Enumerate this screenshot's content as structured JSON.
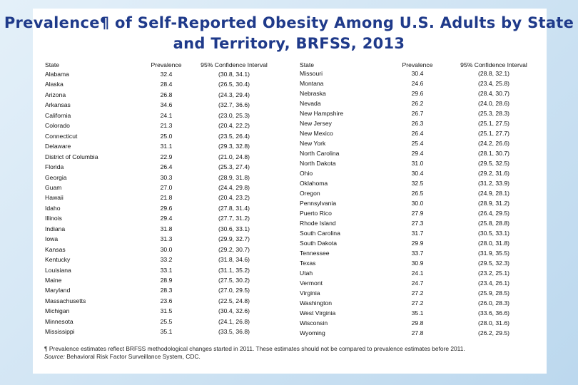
{
  "title": "Prevalence¶ of Self-Reported Obesity Among U.S. Adults by State and Territory, BRFSS, 2013",
  "tables": [
    {
      "header": [
        "State",
        "Prevalence",
        "95% Confidence Interval"
      ],
      "rows": [
        [
          "Alabama",
          "32.4",
          "(30.8, 34.1)"
        ],
        [
          "Alaska",
          "28.4",
          "(26.5, 30.4)"
        ],
        [
          "Arizona",
          "26.8",
          "(24.3, 29.4)"
        ],
        [
          "Arkansas",
          "34.6",
          "(32.7, 36.6)"
        ],
        [
          "California",
          "24.1",
          "(23.0, 25.3)"
        ],
        [
          "Colorado",
          "21.3",
          "(20.4, 22.2)"
        ],
        [
          "Connecticut",
          "25.0",
          "(23.5, 26.4)"
        ],
        [
          "Delaware",
          "31.1",
          "(29.3, 32.8)"
        ],
        [
          "District of Columbia",
          "22.9",
          "(21.0, 24.8)"
        ],
        [
          "Florida",
          "26.4",
          "(25.3, 27.4)"
        ],
        [
          "Georgia",
          "30.3",
          "(28.9, 31.8)"
        ],
        [
          "Guam",
          "27.0",
          "(24.4, 29.8)"
        ],
        [
          "Hawaii",
          "21.8",
          "(20.4, 23.2)"
        ],
        [
          "Idaho",
          "29.6",
          "(27.8, 31.4)"
        ],
        [
          "Illinois",
          "29.4",
          "(27.7, 31.2)"
        ],
        [
          "Indiana",
          "31.8",
          "(30.6, 33.1)"
        ],
        [
          "Iowa",
          "31.3",
          "(29.9, 32.7)"
        ],
        [
          "Kansas",
          "30.0",
          "(29.2, 30.7)"
        ],
        [
          "Kentucky",
          "33.2",
          "(31.8, 34.6)"
        ],
        [
          "Louisiana",
          "33.1",
          "(31.1, 35.2)"
        ],
        [
          "Maine",
          "28.9",
          "(27.5, 30.2)"
        ],
        [
          "Maryland",
          "28.3",
          "(27.0, 29.5)"
        ],
        [
          "Massachusetts",
          "23.6",
          "(22.5, 24.8)"
        ],
        [
          "Michigan",
          "31.5",
          "(30.4, 32.6)"
        ],
        [
          "Minnesota",
          "25.5",
          "(24.1, 26.8)"
        ],
        [
          "Mississippi",
          "35.1",
          "(33.5, 36.8)"
        ]
      ]
    },
    {
      "header": [
        "State",
        "Prevalence",
        "95% Confidence Interval"
      ],
      "rows": [
        [
          "Missouri",
          "30.4",
          "(28.8, 32.1)"
        ],
        [
          "Montana",
          "24.6",
          "(23.4, 25.8)"
        ],
        [
          "Nebraska",
          "29.6",
          "(28.4, 30.7)"
        ],
        [
          "Nevada",
          "26.2",
          "(24.0, 28.6)"
        ],
        [
          "New Hampshire",
          "26.7",
          "(25.3, 28.3)"
        ],
        [
          "New Jersey",
          "26.3",
          "(25.1, 27.5)"
        ],
        [
          "New Mexico",
          "26.4",
          "(25.1, 27.7)"
        ],
        [
          "New York",
          "25.4",
          "(24.2, 26.6)"
        ],
        [
          "North Carolina",
          "29.4",
          "(28.1, 30.7)"
        ],
        [
          "North Dakota",
          "31.0",
          "(29.5, 32.5)"
        ],
        [
          "Ohio",
          "30.4",
          "(29.2, 31.6)"
        ],
        [
          "Oklahoma",
          "32.5",
          "(31.2, 33.9)"
        ],
        [
          "Oregon",
          "26.5",
          "(24.9, 28.1)"
        ],
        [
          "Pennsylvania",
          "30.0",
          "(28.9, 31.2)"
        ],
        [
          "Puerto Rico",
          "27.9",
          "(26.4, 29.5)"
        ],
        [
          "Rhode Island",
          "27.3",
          "(25.8, 28.8)"
        ],
        [
          "South Carolina",
          "31.7",
          "(30.5, 33.1)"
        ],
        [
          "South Dakota",
          "29.9",
          "(28.0, 31.8)"
        ],
        [
          "Tennessee",
          "33.7",
          "(31.9, 35.5)"
        ],
        [
          "Texas",
          "30.9",
          "(29.5, 32.3)"
        ],
        [
          "Utah",
          "24.1",
          "(23.2, 25.1)"
        ],
        [
          "Vermont",
          "24.7",
          "(23.4, 26.1)"
        ],
        [
          "Virginia",
          "27.2",
          "(25.9, 28.5)"
        ],
        [
          "Washington",
          "27.2",
          "(26.0, 28.3)"
        ],
        [
          "West Virginia",
          "35.1",
          "(33.6, 36.6)"
        ],
        [
          "Wisconsin",
          "29.8",
          "(28.0, 31.6)"
        ],
        [
          "Wyoming",
          "27.8",
          "(26.2, 29.5)"
        ]
      ]
    }
  ],
  "footnote": "¶ Prevalence estimates reflect BRFSS methodological changes started in 2011. These estimates should not be compared to prevalence estimates before 2011.",
  "source": {
    "label": "Source:",
    "text": "Behavioral Risk Factor Surveillance System, CDC."
  }
}
